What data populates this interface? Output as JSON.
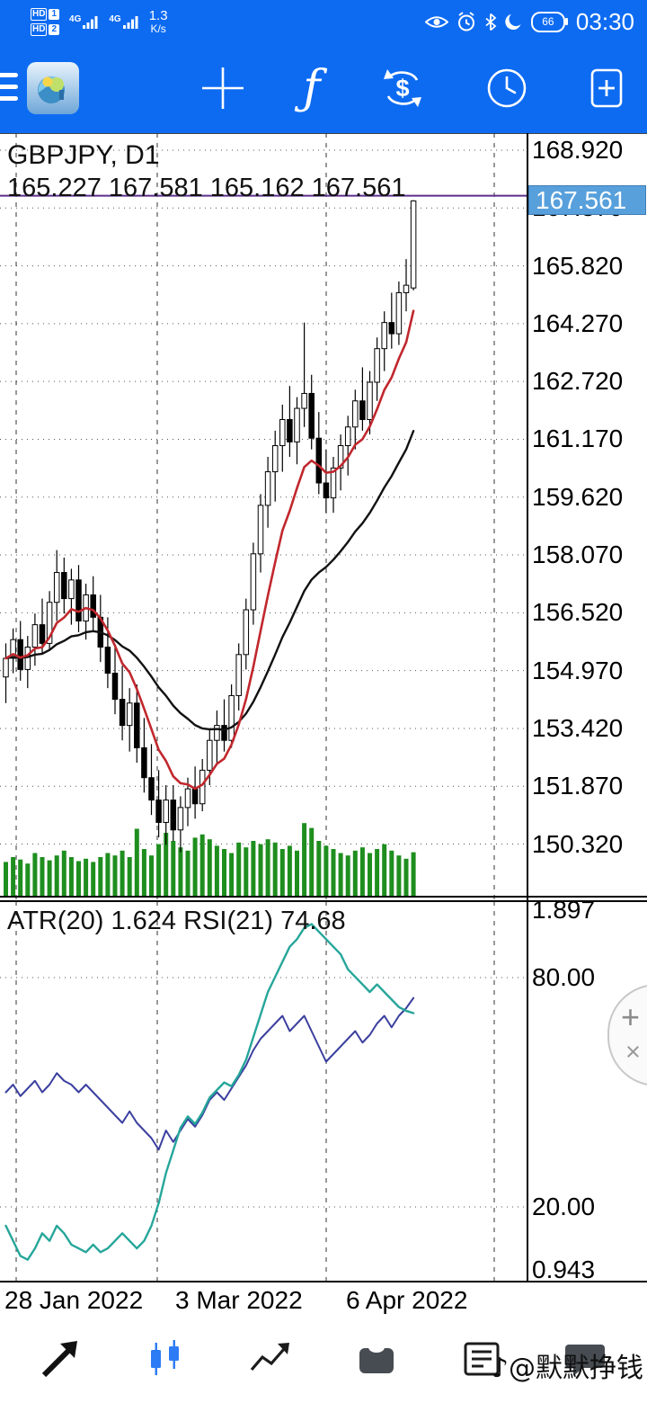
{
  "status_bar": {
    "sim_badges": [
      {
        "label": "HD",
        "num": "1"
      },
      {
        "label": "HD",
        "num": "2"
      }
    ],
    "networks": [
      "4G",
      "4G"
    ],
    "speed_value": "1.3",
    "speed_unit": "K/s",
    "battery_percent": "66",
    "clock": "03:30",
    "status_icons": [
      "eye-icon",
      "alarm-icon",
      "bluetooth-icon",
      "moon-icon",
      "battery-indicator"
    ]
  },
  "toolbar": {
    "icons": [
      "menu-icon",
      "app-logo",
      "crosshair-icon",
      "function-icon",
      "currency-swap-icon",
      "clock-icon",
      "new-order-icon"
    ],
    "function_glyph": "ƒ",
    "currency_glyph": "$"
  },
  "chart": {
    "symbol_line": "GBPJPY, D1",
    "ohlc_line": "165.227 167.581 165.162 167.561",
    "price_box": "167.561"
  },
  "chart_data": {
    "type": "candlestick",
    "symbol": "GBPJPY",
    "timeframe": "D1",
    "ohlc": {
      "open": 165.227,
      "high": 167.581,
      "low": 165.162,
      "close": 167.561
    },
    "price_axis_ticks": [
      "168.920",
      "167.370",
      "165.820",
      "164.270",
      "162.720",
      "161.170",
      "159.620",
      "158.070",
      "156.520",
      "154.970",
      "153.420",
      "151.870",
      "150.320"
    ],
    "current_price": 167.561,
    "hline_price": 167.7,
    "vgrid_x": [
      18,
      175,
      363,
      550
    ],
    "x_labels": [
      {
        "label": "28 Jan 2022",
        "x": 5
      },
      {
        "label": "3 Mar 2022",
        "x": 195
      },
      {
        "label": "6 Apr 2022",
        "x": 385
      }
    ],
    "ma_fast_period": 8,
    "ma_slow_period": 26,
    "candles": [
      [
        154.8,
        155.7,
        154.1,
        155.3
      ],
      [
        155.3,
        156.1,
        154.9,
        155.8
      ],
      [
        155.8,
        156.3,
        154.7,
        155.0
      ],
      [
        155.0,
        155.9,
        154.5,
        155.6
      ],
      [
        155.6,
        156.5,
        155.1,
        156.2
      ],
      [
        156.2,
        156.9,
        155.4,
        155.7
      ],
      [
        155.7,
        157.1,
        155.5,
        156.8
      ],
      [
        156.8,
        158.2,
        156.3,
        157.6
      ],
      [
        157.6,
        158.0,
        156.5,
        156.9
      ],
      [
        156.9,
        157.7,
        156.2,
        157.4
      ],
      [
        157.4,
        157.8,
        156.0,
        156.3
      ],
      [
        156.3,
        157.3,
        155.8,
        157.0
      ],
      [
        157.0,
        157.5,
        156.0,
        156.4
      ],
      [
        156.4,
        157.0,
        155.2,
        155.6
      ],
      [
        155.6,
        156.4,
        154.5,
        154.9
      ],
      [
        154.9,
        155.6,
        153.8,
        154.2
      ],
      [
        154.2,
        155.1,
        153.1,
        153.5
      ],
      [
        153.5,
        154.5,
        152.8,
        154.1
      ],
      [
        154.1,
        154.6,
        152.5,
        152.9
      ],
      [
        152.9,
        153.7,
        151.7,
        152.1
      ],
      [
        152.1,
        153.0,
        151.1,
        151.5
      ],
      [
        151.5,
        152.3,
        150.5,
        150.9
      ],
      [
        150.9,
        151.9,
        150.3,
        151.5
      ],
      [
        151.5,
        151.9,
        150.4,
        150.7
      ],
      [
        150.7,
        151.6,
        150.1,
        151.3
      ],
      [
        151.3,
        152.1,
        150.8,
        151.8
      ],
      [
        151.8,
        152.4,
        151.0,
        151.4
      ],
      [
        151.4,
        152.6,
        151.2,
        152.3
      ],
      [
        152.3,
        153.4,
        151.9,
        153.1
      ],
      [
        153.1,
        153.9,
        152.5,
        153.5
      ],
      [
        153.5,
        154.2,
        152.8,
        153.1
      ],
      [
        153.1,
        154.6,
        152.9,
        154.3
      ],
      [
        154.3,
        155.7,
        153.9,
        155.4
      ],
      [
        155.4,
        156.9,
        155.0,
        156.6
      ],
      [
        156.6,
        158.4,
        156.2,
        158.1
      ],
      [
        158.1,
        159.7,
        157.6,
        159.4
      ],
      [
        159.4,
        160.7,
        158.8,
        160.3
      ],
      [
        160.3,
        161.4,
        159.5,
        161.0
      ],
      [
        161.0,
        162.1,
        160.3,
        161.7
      ],
      [
        161.7,
        162.6,
        160.7,
        161.1
      ],
      [
        161.1,
        162.3,
        160.5,
        162.0
      ],
      [
        162.0,
        164.3,
        161.5,
        162.4
      ],
      [
        162.4,
        162.9,
        160.9,
        161.2
      ],
      [
        161.2,
        161.9,
        159.7,
        160.0
      ],
      [
        160.0,
        160.9,
        159.2,
        159.6
      ],
      [
        159.6,
        160.7,
        159.2,
        160.4
      ],
      [
        160.4,
        161.3,
        159.8,
        161.0
      ],
      [
        161.0,
        161.8,
        160.2,
        161.5
      ],
      [
        161.5,
        162.5,
        160.9,
        162.2
      ],
      [
        162.2,
        163.1,
        161.4,
        161.7
      ],
      [
        161.7,
        163.0,
        161.3,
        162.7
      ],
      [
        162.7,
        163.9,
        162.2,
        163.6
      ],
      [
        163.6,
        164.6,
        163.0,
        164.3
      ],
      [
        164.3,
        165.1,
        163.6,
        164.0
      ],
      [
        164.0,
        165.4,
        163.7,
        165.1
      ],
      [
        165.1,
        166.0,
        164.6,
        165.3
      ],
      [
        165.227,
        167.581,
        165.162,
        167.561
      ]
    ],
    "volumes": [
      44,
      50,
      47,
      42,
      55,
      50,
      46,
      52,
      58,
      50,
      45,
      48,
      44,
      50,
      55,
      52,
      58,
      50,
      85,
      60,
      52,
      66,
      80,
      70,
      62,
      58,
      74,
      78,
      72,
      64,
      60,
      55,
      68,
      62,
      70,
      66,
      72,
      68,
      60,
      64,
      58,
      92,
      86,
      70,
      64,
      60,
      55,
      52,
      58,
      62,
      55,
      60,
      66,
      58,
      52,
      48,
      56
    ],
    "indicator": {
      "label": "ATR(20) 1.624 RSI(21) 74.68",
      "atr": {
        "name": "ATR",
        "period": 20,
        "value": 1.624,
        "min": 0.943,
        "max": 1.897,
        "series": [
          1.06,
          1.02,
          0.98,
          0.97,
          1.0,
          1.04,
          1.02,
          1.06,
          1.04,
          1.01,
          1.0,
          0.99,
          1.01,
          0.99,
          1.0,
          1.02,
          1.04,
          1.02,
          1.0,
          1.02,
          1.06,
          1.12,
          1.2,
          1.26,
          1.32,
          1.35,
          1.33,
          1.36,
          1.4,
          1.42,
          1.44,
          1.43,
          1.46,
          1.5,
          1.56,
          1.62,
          1.68,
          1.72,
          1.76,
          1.8,
          1.82,
          1.85,
          1.86,
          1.84,
          1.82,
          1.8,
          1.78,
          1.74,
          1.72,
          1.7,
          1.68,
          1.7,
          1.68,
          1.66,
          1.64,
          1.63,
          1.624
        ]
      },
      "rsi": {
        "name": "RSI",
        "period": 21,
        "value": 74.68,
        "levels": [
          80,
          20
        ],
        "series": [
          50,
          52,
          49,
          51,
          53,
          50,
          52,
          55,
          53,
          52,
          50,
          52,
          50,
          48,
          46,
          44,
          42,
          45,
          42,
          40,
          38,
          35,
          40,
          37,
          40,
          43,
          41,
          44,
          48,
          50,
          48,
          51,
          54,
          57,
          61,
          64,
          66,
          68,
          70,
          66,
          68,
          70,
          66,
          62,
          58,
          60,
          62,
          64,
          66,
          63,
          65,
          68,
          70,
          67,
          70,
          72,
          74.68
        ]
      },
      "ticks": [
        {
          "label": "1.897",
          "scale": "atr",
          "value": 1.897
        },
        {
          "label": "80.00",
          "scale": "rsi",
          "value": 80
        },
        {
          "label": "20.00",
          "scale": "rsi",
          "value": 20
        },
        {
          "label": "0.943",
          "scale": "atr",
          "value": 0.943
        }
      ]
    }
  },
  "floating": {
    "plus": "+",
    "close": "×"
  },
  "bottom_nav": {
    "icons": [
      "quotes-icon",
      "chart-icon",
      "analytics-icon",
      "trade-icon",
      "news-icon",
      "messages-icon"
    ],
    "active_index": 1
  },
  "watermark": "♪@默默挣钱",
  "colors": {
    "accent_blue": "#0d6bf2",
    "price_box": "#58a0dc",
    "bull": "#ffffff",
    "bear": "#000000",
    "volume": "#1e8e1e",
    "ma_fast": "#c1272d",
    "ma_slow": "#111111",
    "atr_line": "#26a69a",
    "rsi_line": "#3a3f9e",
    "hline": "#5d2e8e",
    "active_nav": "#2e7cf5"
  }
}
